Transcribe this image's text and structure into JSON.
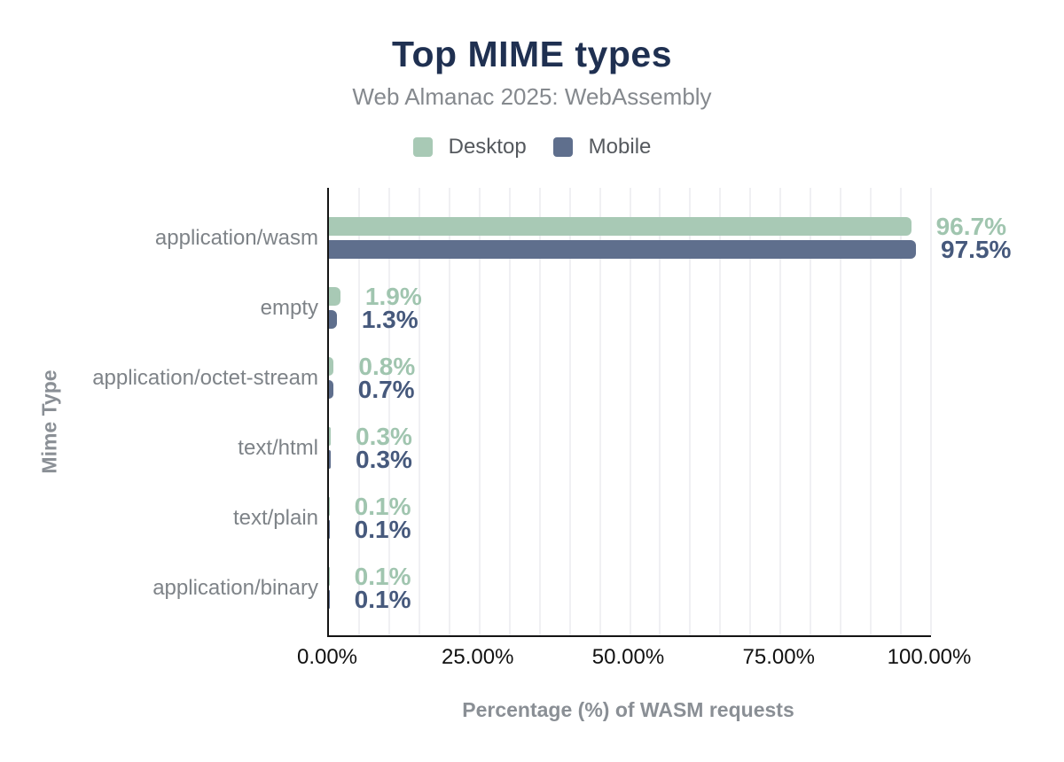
{
  "chart_data": {
    "type": "bar",
    "orientation": "horizontal",
    "title": "Top MIME types",
    "subtitle": "Web Almanac 2025: WebAssembly",
    "categories": [
      "application/wasm",
      "empty",
      "application/octet-stream",
      "text/html",
      "text/plain",
      "application/binary"
    ],
    "series": [
      {
        "name": "Desktop",
        "color": "#a8c9b5",
        "label_color": "#a0c5af",
        "values": [
          96.7,
          1.9,
          0.8,
          0.3,
          0.1,
          0.1
        ],
        "value_labels": [
          "96.7%",
          "1.9%",
          "0.8%",
          "0.3%",
          "0.1%",
          "0.1%"
        ]
      },
      {
        "name": "Mobile",
        "color": "#5f6f8d",
        "label_color": "#46597c",
        "values": [
          97.5,
          1.3,
          0.7,
          0.3,
          0.1,
          0.1
        ],
        "value_labels": [
          "97.5%",
          "1.3%",
          "0.7%",
          "0.3%",
          "0.1%",
          "0.1%"
        ]
      }
    ],
    "xlabel": "Percentage (%) of WASM requests",
    "ylabel": "Mime Type",
    "xlim": [
      0,
      100
    ],
    "x_ticks": [
      "0.00%",
      "25.00%",
      "50.00%",
      "75.00%",
      "100.00%"
    ],
    "grid": {
      "step_pct": 5,
      "color": "#f0f0f3"
    },
    "legend_position": "top",
    "axis_color": "#141414",
    "title_color": "#1f3051"
  }
}
